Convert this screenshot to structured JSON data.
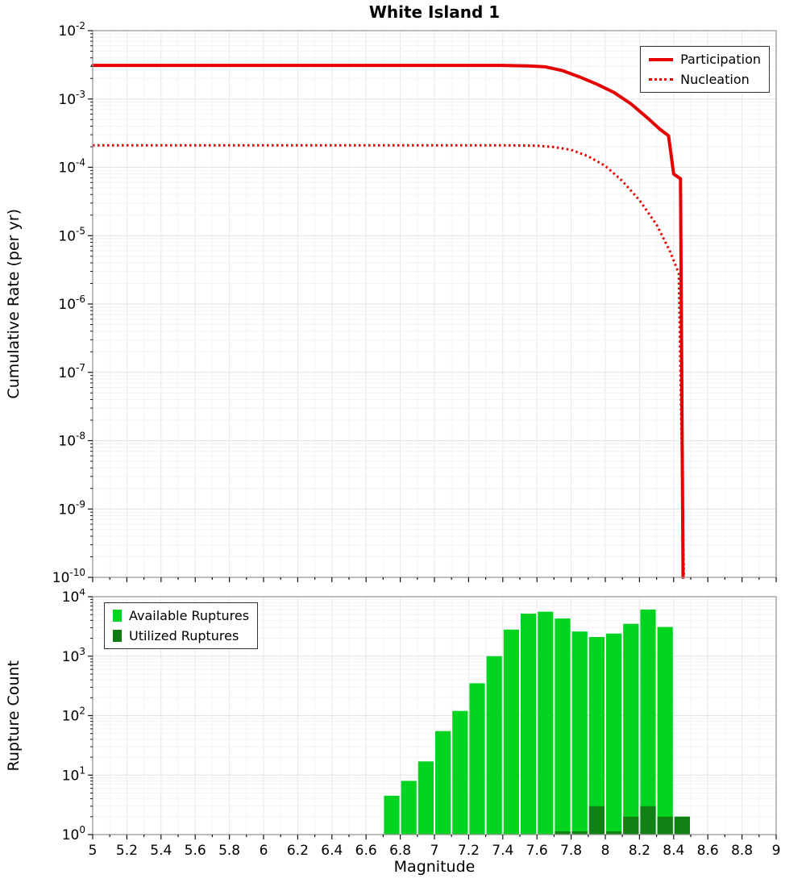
{
  "chart_data": [
    {
      "type": "line",
      "title": "White Island 1",
      "ylabel": "Cumulative Rate (per yr)",
      "xlabel": "",
      "xlim": [
        5,
        9
      ],
      "ylim_exp": [
        -10,
        -2
      ],
      "grid": true,
      "legend": {
        "position": "top-right",
        "entries": [
          {
            "label": "Participation",
            "style": "solid",
            "color": "#e60000"
          },
          {
            "label": "Nucleation",
            "style": "dotted",
            "color": "#e60000"
          }
        ]
      },
      "series": [
        {
          "name": "Participation",
          "style": "solid",
          "color": "#e60000",
          "points": [
            [
              5.0,
              0.0031
            ],
            [
              6.0,
              0.0031
            ],
            [
              7.0,
              0.0031
            ],
            [
              7.4,
              0.0031
            ],
            [
              7.55,
              0.00305
            ],
            [
              7.65,
              0.00295
            ],
            [
              7.75,
              0.0026
            ],
            [
              7.85,
              0.0021
            ],
            [
              7.95,
              0.00165
            ],
            [
              8.05,
              0.00125
            ],
            [
              8.15,
              0.00085
            ],
            [
              8.25,
              0.00052
            ],
            [
              8.32,
              0.00036
            ],
            [
              8.37,
              0.00029
            ],
            [
              8.4,
              8e-05
            ],
            [
              8.44,
              6.8e-05
            ],
            [
              8.455,
              1e-10
            ]
          ]
        },
        {
          "name": "Nucleation",
          "style": "dotted",
          "color": "#e60000",
          "points": [
            [
              5.0,
              0.00021
            ],
            [
              6.0,
              0.00021
            ],
            [
              7.0,
              0.00021
            ],
            [
              7.4,
              0.00021
            ],
            [
              7.6,
              0.000207
            ],
            [
              7.7,
              0.000198
            ],
            [
              7.8,
              0.00018
            ],
            [
              7.9,
              0.000145
            ],
            [
              8.0,
              0.000105
            ],
            [
              8.1,
              6.3e-05
            ],
            [
              8.2,
              3.3e-05
            ],
            [
              8.3,
              1.45e-05
            ],
            [
              8.38,
              5.8e-06
            ],
            [
              8.43,
              2.8e-06
            ],
            [
              8.46,
              1e-10
            ]
          ]
        }
      ]
    },
    {
      "type": "bar",
      "title": "",
      "ylabel": "Rupture Count",
      "xlabel": "Magnitude",
      "xlim": [
        5,
        9
      ],
      "ylim_exp": [
        0,
        4
      ],
      "grid": true,
      "bin_width": 0.1,
      "categories": [
        6.75,
        6.85,
        6.95,
        7.05,
        7.15,
        7.25,
        7.35,
        7.45,
        7.55,
        7.65,
        7.75,
        7.85,
        7.95,
        8.05,
        8.15,
        8.25,
        8.35,
        8.45
      ],
      "series": [
        {
          "name": "Available Ruptures",
          "color": "#00d320",
          "values": [
            4.5,
            8,
            17,
            55,
            120,
            350,
            1000,
            2800,
            5200,
            5600,
            4300,
            2600,
            2100,
            2400,
            3500,
            6100,
            3100,
            2
          ]
        },
        {
          "name": "Utilized Ruptures",
          "color": "#117a11",
          "values": [
            0,
            0,
            0,
            0,
            0,
            0,
            0,
            0,
            0,
            0,
            1,
            1,
            3,
            1,
            2,
            3,
            2,
            2
          ]
        }
      ],
      "legend": {
        "position": "top-left"
      },
      "x_tick_labels": [
        "5",
        "5.2",
        "5.4",
        "5.6",
        "5.8",
        "6",
        "6.2",
        "6.4",
        "6.6",
        "6.8",
        "7",
        "7.2",
        "7.4",
        "7.6",
        "7.8",
        "8",
        "8.2",
        "8.4",
        "8.6",
        "8.8",
        "9"
      ]
    }
  ]
}
